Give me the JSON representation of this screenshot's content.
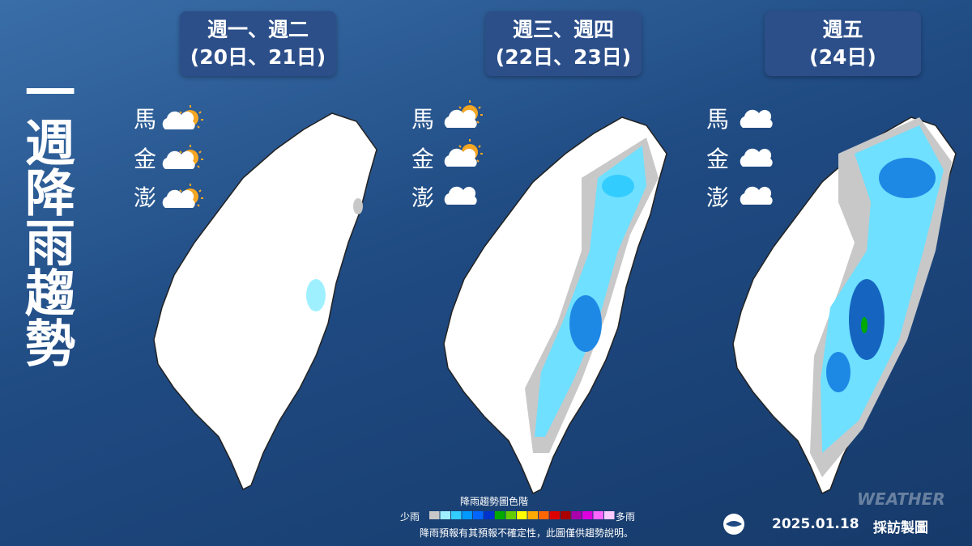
{
  "title": "一週降雨趨勢",
  "panels": [
    {
      "heading": [
        "週一、週二",
        "(20日、21日)"
      ],
      "islands": [
        "馬",
        "金",
        "澎"
      ]
    },
    {
      "heading": [
        "週三、週四",
        "(22日、23日)"
      ],
      "islands": [
        "馬",
        "金",
        "澎"
      ]
    },
    {
      "heading": [
        "週五",
        "(24日)"
      ],
      "islands": [
        "馬",
        "金",
        "澎"
      ]
    }
  ],
  "legend": {
    "title": "降雨趨勢圖色階",
    "low": "少雨",
    "high": "多雨",
    "colors": [
      "#c8c8c8",
      "#9ff0ff",
      "#33ccff",
      "#0099ff",
      "#0066ff",
      "#0033cc",
      "#00aa00",
      "#66cc00",
      "#ffff00",
      "#ffaa00",
      "#ff6600",
      "#dd0000",
      "#aa0000",
      "#aa00aa",
      "#dd00dd",
      "#ff66ff",
      "#ffccff"
    ]
  },
  "note": "降雨預報有其預報不確定性，此圖僅供趨勢說明。",
  "footer": {
    "date": "2025.01.18",
    "credit": "採訪製圖"
  },
  "watermark": "WEATHER"
}
